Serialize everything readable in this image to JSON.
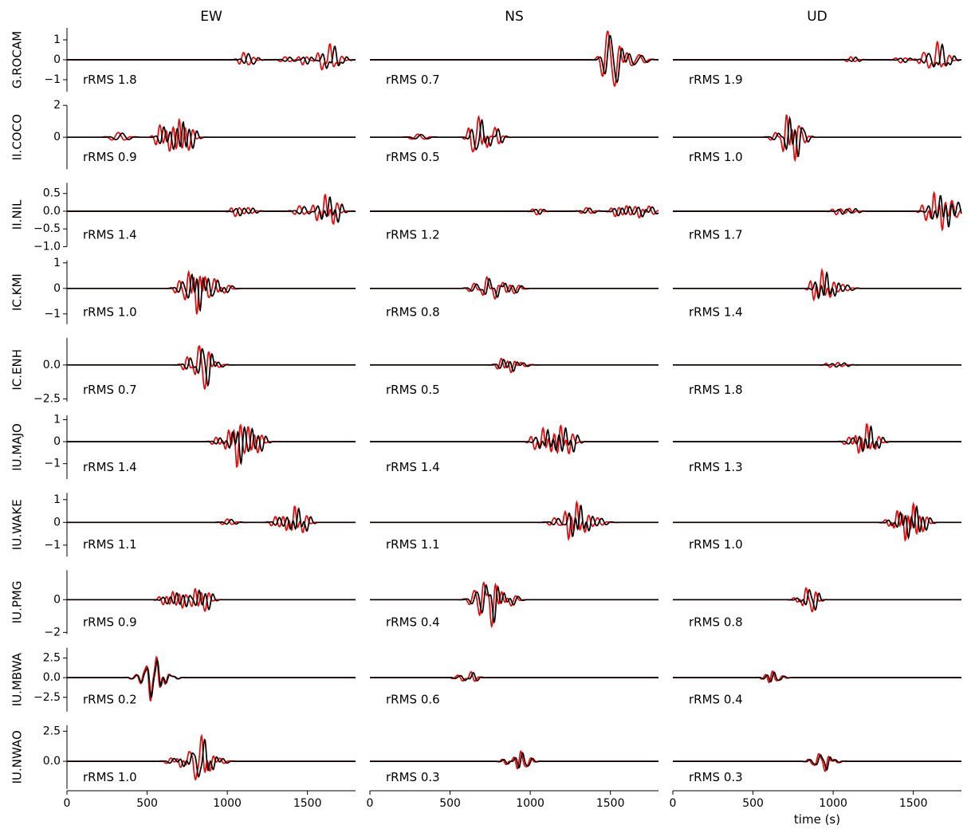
{
  "chart_data": {
    "type": "line",
    "columns": [
      "EW",
      "NS",
      "UD"
    ],
    "xlabel": "time (s)",
    "xlim": [
      0,
      1800
    ],
    "xticks": [
      0,
      500,
      1000,
      1500
    ],
    "series_colors": {
      "data": "#ff0000",
      "synthetic": "#000000"
    },
    "rows": [
      {
        "station": "G.ROCAM",
        "ylim": [
          -1.6,
          1.6
        ],
        "yticks": [
          -1,
          0,
          1
        ],
        "ytick_labels": [
          "−1",
          "0",
          "1"
        ],
        "rrms": [
          "rRMS 1.8",
          "rRMS 0.7",
          "rRMS 1.9"
        ],
        "wavelets": [
          [
            [
              1100,
              0.35,
              25
            ],
            [
              1140,
              -0.2,
              25
            ],
            [
              1360,
              0.15,
              30
            ],
            [
              1470,
              -0.25,
              25
            ],
            [
              1590,
              -0.6,
              25
            ],
            [
              1640,
              0.9,
              25
            ],
            [
              1690,
              -0.3,
              25
            ]
          ],
          [
            [
              1480,
              1.4,
              30
            ],
            [
              1530,
              -1.3,
              30
            ],
            [
              1600,
              0.4,
              30
            ],
            [
              1680,
              0.25,
              35
            ]
          ],
          [
            [
              1110,
              0.15,
              25
            ],
            [
              1420,
              -0.15,
              30
            ],
            [
              1560,
              0.3,
              25
            ],
            [
              1600,
              -0.5,
              25
            ],
            [
              1650,
              1.0,
              25
            ],
            [
              1700,
              -0.4,
              25
            ]
          ]
        ],
        "shifts": [
          30,
          15,
          30
        ]
      },
      {
        "station": "II.COCO",
        "ylim": [
          -2,
          2
        ],
        "yticks": [
          0,
          2
        ],
        "ytick_labels": [
          "0",
          "2"
        ],
        "rrms": [
          "rRMS 0.9",
          "rRMS 0.5",
          "rRMS 1.0"
        ],
        "wavelets": [
          [
            [
              320,
              0.3,
              40
            ],
            [
              580,
              0.8,
              25
            ],
            [
              640,
              -0.9,
              25
            ],
            [
              700,
              1.2,
              20
            ],
            [
              760,
              -0.8,
              25
            ]
          ],
          [
            [
              300,
              0.2,
              40
            ],
            [
              640,
              -1.0,
              25
            ],
            [
              680,
              1.3,
              22
            ],
            [
              730,
              -0.8,
              25
            ],
            [
              780,
              0.7,
              25
            ]
          ],
          [
            [
              640,
              0.3,
              30
            ],
            [
              710,
              1.5,
              22
            ],
            [
              760,
              -1.5,
              22
            ],
            [
              800,
              0.6,
              25
            ]
          ]
        ],
        "shifts": [
          25,
          20,
          20
        ]
      },
      {
        "station": "II.NIL",
        "ylim": [
          -1.0,
          0.8
        ],
        "yticks": [
          -1.0,
          -0.5,
          0.0,
          0.5
        ],
        "ytick_labels": [
          "−1.0",
          "−0.5",
          "0.0",
          "0.5"
        ],
        "rrms": [
          "rRMS 1.4",
          "rRMS 1.2",
          "rRMS 1.7"
        ],
        "wavelets": [
          [
            [
              1050,
              -0.15,
              25
            ],
            [
              1130,
              0.1,
              25
            ],
            [
              1450,
              0.15,
              30
            ],
            [
              1560,
              -0.3,
              25
            ],
            [
              1610,
              0.55,
              22
            ],
            [
              1660,
              -0.4,
              25
            ]
          ],
          [
            [
              1040,
              -0.1,
              25
            ],
            [
              1350,
              0.1,
              30
            ],
            [
              1530,
              -0.15,
              25
            ],
            [
              1600,
              0.15,
              25
            ],
            [
              1680,
              -0.2,
              25
            ],
            [
              1740,
              0.15,
              30
            ]
          ],
          [
            [
              1020,
              -0.1,
              25
            ],
            [
              1100,
              0.08,
              25
            ],
            [
              1580,
              -0.3,
              25
            ],
            [
              1630,
              0.6,
              22
            ],
            [
              1680,
              -0.6,
              22
            ],
            [
              1740,
              0.3,
              30
            ]
          ]
        ],
        "shifts": [
          30,
          20,
          40
        ]
      },
      {
        "station": "IC.KMI",
        "ylim": [
          -1.4,
          1.1
        ],
        "yticks": [
          -1,
          0,
          1
        ],
        "ytick_labels": [
          "−1",
          "0",
          "1"
        ],
        "rrms": [
          "rRMS 1.0",
          "rRMS 0.8",
          "rRMS 1.4"
        ],
        "wavelets": [
          [
            [
              700,
              0.3,
              25
            ],
            [
              760,
              0.7,
              22
            ],
            [
              810,
              -1.1,
              22
            ],
            [
              860,
              0.5,
              22
            ],
            [
              920,
              0.4,
              25
            ],
            [
              980,
              -0.2,
              30
            ]
          ],
          [
            [
              650,
              0.2,
              30
            ],
            [
              730,
              0.5,
              25
            ],
            [
              780,
              -0.5,
              25
            ],
            [
              830,
              0.3,
              25
            ],
            [
              900,
              -0.2,
              30
            ]
          ],
          [
            [
              880,
              -0.5,
              22
            ],
            [
              930,
              0.8,
              22
            ],
            [
              980,
              -0.4,
              25
            ],
            [
              1060,
              0.15,
              30
            ]
          ]
        ],
        "shifts": [
          20,
          15,
          30
        ]
      },
      {
        "station": "IC.ENH",
        "ylim": [
          -2.7,
          2.0
        ],
        "yticks": [
          -2.5,
          0.0
        ],
        "ytick_labels": [
          "−2.5",
          "0.0"
        ],
        "rrms": [
          "rRMS 0.7",
          "rRMS 0.5",
          "rRMS 1.8"
        ],
        "wavelets": [
          [
            [
              750,
              0.6,
              25
            ],
            [
              820,
              1.2,
              22
            ],
            [
              860,
              -1.9,
              25
            ],
            [
              920,
              0.3,
              30
            ]
          ],
          [
            [
              820,
              0.5,
              25
            ],
            [
              880,
              -0.6,
              25
            ],
            [
              940,
              0.2,
              30
            ]
          ],
          [
            [
              980,
              -0.2,
              25
            ],
            [
              1030,
              0.2,
              25
            ]
          ]
        ],
        "shifts": [
          20,
          15,
          40
        ]
      },
      {
        "station": "IU.MAJO",
        "ylim": [
          -1.7,
          1.2
        ],
        "yticks": [
          -1,
          0,
          1
        ],
        "ytick_labels": [
          "−1",
          "0",
          "1"
        ],
        "rrms": [
          "rRMS 1.4",
          "rRMS 1.4",
          "rRMS 1.3"
        ],
        "wavelets": [
          [
            [
              930,
              0.2,
              25
            ],
            [
              1010,
              0.6,
              22
            ],
            [
              1060,
              -1.2,
              22
            ],
            [
              1130,
              0.7,
              22
            ],
            [
              1190,
              -0.5,
              25
            ]
          ],
          [
            [
              1030,
              -0.4,
              25
            ],
            [
              1080,
              0.7,
              22
            ],
            [
              1130,
              -0.5,
              22
            ],
            [
              1190,
              0.8,
              22
            ],
            [
              1240,
              -0.6,
              25
            ]
          ],
          [
            [
              1100,
              0.2,
              30
            ],
            [
              1160,
              -0.6,
              22
            ],
            [
              1210,
              0.9,
              22
            ],
            [
              1260,
              -0.4,
              25
            ]
          ]
        ],
        "shifts": [
          25,
          30,
          25
        ]
      },
      {
        "station": "IU.WAKE",
        "ylim": [
          -1.5,
          1.3
        ],
        "yticks": [
          -1,
          0,
          1
        ],
        "ytick_labels": [
          "−1",
          "0",
          "1"
        ],
        "rrms": [
          "rRMS 1.1",
          "rRMS 1.1",
          "rRMS 1.0"
        ],
        "wavelets": [
          [
            [
              1000,
              0.15,
              30
            ],
            [
              1300,
              0.25,
              25
            ],
            [
              1370,
              -0.4,
              22
            ],
            [
              1420,
              0.8,
              22
            ],
            [
              1470,
              -0.5,
              25
            ]
          ],
          [
            [
              1150,
              0.2,
              30
            ],
            [
              1240,
              -0.8,
              22
            ],
            [
              1290,
              1.0,
              22
            ],
            [
              1340,
              -0.5,
              25
            ],
            [
              1420,
              0.2,
              30
            ]
          ],
          [
            [
              1350,
              -0.2,
              25
            ],
            [
              1400,
              0.6,
              22
            ],
            [
              1450,
              -0.9,
              22
            ],
            [
              1500,
              0.9,
              22
            ],
            [
              1560,
              -0.4,
              25
            ]
          ]
        ],
        "shifts": [
          25,
          25,
          20
        ]
      },
      {
        "station": "IU.PMG",
        "ylim": [
          -2.1,
          1.8
        ],
        "yticks": [
          -2,
          0
        ],
        "ytick_labels": [
          "−2",
          "0"
        ],
        "rrms": [
          "rRMS 0.9",
          "rRMS 0.4",
          "rRMS 0.8"
        ],
        "wavelets": [
          [
            [
              600,
              -0.3,
              25
            ],
            [
              660,
              0.5,
              22
            ],
            [
              720,
              -0.5,
              22
            ],
            [
              800,
              0.7,
              22
            ],
            [
              860,
              -0.7,
              25
            ]
          ],
          [
            [
              650,
              0.5,
              30
            ],
            [
              710,
              1.2,
              25
            ],
            [
              760,
              -1.8,
              25
            ],
            [
              820,
              0.6,
              25
            ],
            [
              880,
              -0.4,
              30
            ]
          ],
          [
            [
              780,
              -0.2,
              25
            ],
            [
              830,
              0.8,
              22
            ],
            [
              870,
              -0.8,
              22
            ]
          ]
        ],
        "shifts": [
          25,
          15,
          20
        ]
      },
      {
        "station": "IU.MBWA",
        "ylim": [
          -4.3,
          3.8
        ],
        "yticks": [
          -2.5,
          0.0,
          2.5
        ],
        "ytick_labels": [
          "−2.5",
          "0.0",
          "2.5"
        ],
        "rrms": [
          "rRMS 0.2",
          "rRMS 0.6",
          "rRMS 0.4"
        ],
        "wavelets": [
          [
            [
              430,
              0.3,
              30
            ],
            [
              480,
              1.0,
              22
            ],
            [
              520,
              -3.3,
              22
            ],
            [
              560,
              3.0,
              22
            ],
            [
              610,
              -1.0,
              25
            ],
            [
              660,
              0.3,
              30
            ]
          ],
          [
            [
              540,
              0.2,
              25
            ],
            [
              580,
              -0.5,
              25
            ],
            [
              630,
              0.8,
              25
            ]
          ],
          [
            [
              580,
              0.3,
              25
            ],
            [
              620,
              0.8,
              22
            ],
            [
              660,
              -0.4,
              25
            ]
          ]
        ],
        "shifts": [
          5,
          15,
          10
        ]
      },
      {
        "station": "IU.NWAO",
        "ylim": [
          -2.3,
          3.0
        ],
        "yticks": [
          0.0,
          2.5
        ],
        "ytick_labels": [
          "0.0",
          "2.5"
        ],
        "rrms": [
          "rRMS 1.0",
          "rRMS 0.3",
          "rRMS 0.3"
        ],
        "wavelets": [
          [
            [
              650,
              0.3,
              30
            ],
            [
              710,
              -0.6,
              25
            ],
            [
              760,
              1.0,
              22
            ],
            [
              800,
              -1.8,
              22
            ],
            [
              840,
              2.4,
              22
            ],
            [
              890,
              -1.0,
              25
            ],
            [
              950,
              0.3,
              30
            ]
          ],
          [
            [
              850,
              -0.3,
              25
            ],
            [
              900,
              0.3,
              25
            ],
            [
              940,
              0.8,
              22
            ],
            [
              980,
              -0.5,
              25
            ]
          ],
          [
            [
              870,
              -0.3,
              25
            ],
            [
              910,
              0.7,
              22
            ],
            [
              950,
              -0.9,
              22
            ],
            [
              1000,
              0.2,
              30
            ]
          ]
        ],
        "shifts": [
          20,
          10,
          10
        ]
      }
    ]
  }
}
